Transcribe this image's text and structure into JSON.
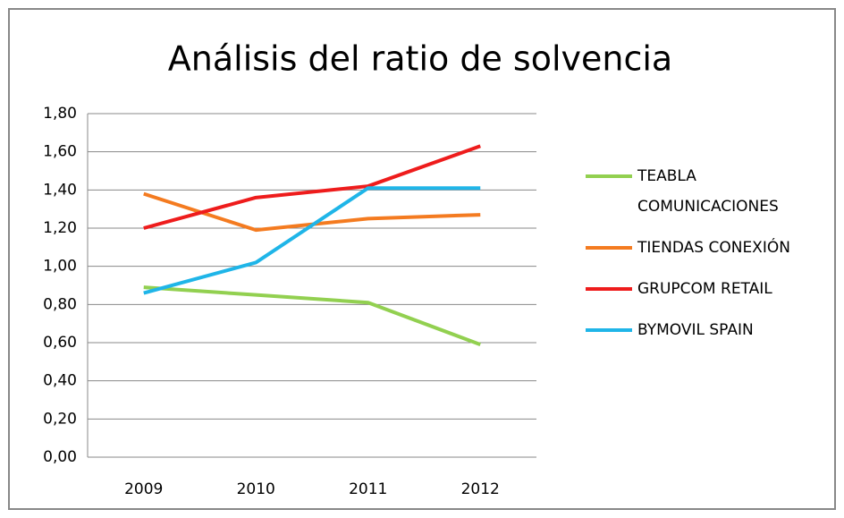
{
  "chart_data": {
    "type": "line",
    "title": "Análisis del ratio de solvencia",
    "categories": [
      "2009",
      "2010",
      "2011",
      "2012"
    ],
    "series": [
      {
        "name": "TEABLA COMUNICACIONES",
        "color": "#92d050",
        "values": [
          0.89,
          0.85,
          0.81,
          0.59
        ]
      },
      {
        "name": "TIENDAS CONEXIÓN",
        "color": "#f47b20",
        "values": [
          1.38,
          1.19,
          1.25,
          1.27
        ]
      },
      {
        "name": "GRUPCOM RETAIL",
        "color": "#ee1c1c",
        "values": [
          1.2,
          1.36,
          1.42,
          1.63
        ]
      },
      {
        "name": "BYMOVIL SPAIN",
        "color": "#1fb5e8",
        "values": [
          0.86,
          1.02,
          1.41,
          1.41
        ]
      }
    ],
    "ylim": [
      0,
      1.8
    ],
    "yticks": [
      {
        "value": 0,
        "label": "0,00"
      },
      {
        "value": 0.2,
        "label": "0,20"
      },
      {
        "value": 0.4,
        "label": "0,40"
      },
      {
        "value": 0.6,
        "label": "0,60"
      },
      {
        "value": 0.8,
        "label": "0,80"
      },
      {
        "value": 1,
        "label": "1,00"
      },
      {
        "value": 1.2,
        "label": "1,20"
      },
      {
        "value": 1.4,
        "label": "1,40"
      },
      {
        "value": 1.6,
        "label": "1,60"
      },
      {
        "value": 1.8,
        "label": "1,80"
      }
    ],
    "grid": true,
    "legend": "right"
  }
}
